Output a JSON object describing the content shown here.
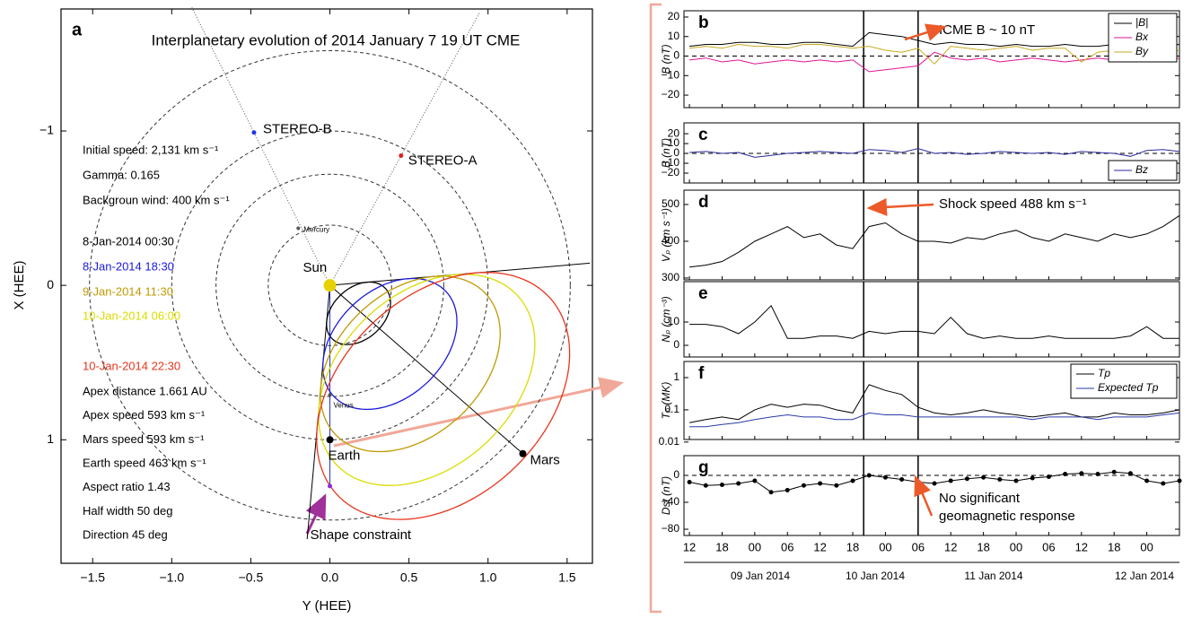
{
  "chart_data": [
    {
      "type": "orbit",
      "panel_letter": "a",
      "title": "Interplanetary evolution of 2014 January 7 19 UT CME",
      "xlabel": "Y (HEE)",
      "ylabel": "X (HEE)",
      "xlim": [
        -1.7,
        1.66
      ],
      "ylim": [
        -1.79,
        1.8
      ],
      "y_inverted": true,
      "xticks": [
        {
          "value": -1.5,
          "label": "−1.5"
        },
        {
          "value": -1,
          "label": "−1.0"
        },
        {
          "value": -0.5,
          "label": "−0.5"
        },
        {
          "value": 0,
          "label": "0.0"
        },
        0.5,
        {
          "value": 1,
          "label": "1.0"
        },
        1.5
      ],
      "yticks": [
        {
          "value": -1,
          "label": "−1"
        },
        0,
        1
      ],
      "orbits": [
        0.39,
        0.72,
        1.0,
        1.52
      ],
      "bodies": [
        {
          "name": "Sun",
          "pos": [
            0,
            0
          ],
          "color": "#e6d200"
        },
        {
          "name": "STEREO-B",
          "pos": [
            -0.48,
            -0.99
          ],
          "color": "#2233ee"
        },
        {
          "name": "STEREO-A",
          "pos": [
            0.45,
            -0.84
          ],
          "color": "#e02020"
        },
        {
          "name": "Mercury",
          "pos": [
            -0.2,
            -0.37
          ],
          "color": "#555555"
        },
        {
          "name": "Venus",
          "pos": [
            0,
            0.71
          ],
          "color": "#555555"
        },
        {
          "name": "Earth",
          "pos": [
            0,
            1.0
          ],
          "color": "#000000"
        },
        {
          "name": "Mars",
          "pos": [
            1.22,
            1.09
          ],
          "color": "#000000"
        },
        {
          "name": "Shape constraint",
          "pos": [
            0,
            1.3
          ],
          "color": "#8a2be2"
        }
      ],
      "parameters": [
        "Initial speed: 2,131 km s⁻¹",
        "Gamma: 0.165",
        "Backgroun wind: 400 km s⁻¹"
      ],
      "results": [
        "Apex distance 1.661 AU",
        "Apex speed 593 km s⁻¹",
        "Mars speed 593 km s⁻¹",
        "Earth speed 463 km s⁻¹",
        "Aspect ratio 1.43",
        "Half width 50 deg",
        "Direction 45 deg"
      ],
      "cme": {
        "direction": 45,
        "half_width": 50,
        "aspect_ratio": 1.43,
        "fronts": [
          {
            "label": "8-Jan-2014 00:30",
            "color": "#000000",
            "apex": 0.42
          },
          {
            "label": "8-Jan-2014 18:30",
            "color": "#1a1adc",
            "apex": 0.88
          },
          {
            "label": "9-Jan-2014 11:30",
            "color": "#c09a00",
            "apex": 1.18
          },
          {
            "label": "10-Jan-2014 06:00",
            "color": "#dcdc00",
            "apex": 1.42
          },
          {
            "label": "10-Jan-2014 22:30",
            "color": "#e8341c",
            "apex": 1.661
          }
        ]
      }
    },
    {
      "type": "line",
      "x": [
        12,
        15,
        18,
        21,
        24,
        27,
        30,
        33,
        36,
        39,
        42,
        45,
        48,
        51,
        54,
        57,
        60,
        63,
        66,
        69,
        72,
        75,
        78,
        81,
        84,
        87,
        90,
        93,
        96,
        99,
        102
      ],
      "xlim": [
        11,
        102
      ],
      "xticks": [
        12,
        18,
        {
          "value": 24,
          "label": "00"
        },
        {
          "value": 30,
          "label": "06"
        },
        {
          "value": 36,
          "label": "12"
        },
        {
          "value": 42,
          "label": "18"
        },
        {
          "value": 48,
          "label": "00"
        },
        {
          "value": 54,
          "label": "06"
        },
        {
          "value": 60,
          "label": "12"
        },
        {
          "value": 66,
          "label": "18"
        },
        {
          "value": 72,
          "label": "00"
        },
        {
          "value": 78,
          "label": "06"
        },
        {
          "value": 84,
          "label": "12"
        },
        {
          "value": 90,
          "label": "18"
        },
        {
          "value": 96,
          "label": "00"
        }
      ],
      "dates": [
        "09 Jan 2014",
        "10 Jan 2014",
        "11 Jan 2014",
        "12 Jan 2014"
      ],
      "event_lines": [
        44,
        54
      ],
      "panels": [
        {
          "letter": "b",
          "ylabel": "B (nT)",
          "ylim": [
            -26.4,
            23.2
          ],
          "yticks": [
            {
              "value": -20,
              "label": "−20"
            },
            {
              "value": -10,
              "label": "−10"
            },
            0,
            10,
            20
          ],
          "zero_line": true,
          "legend": "upper right",
          "annotation": [
            "ICME B ~ 10 nT"
          ],
          "series": [
            {
              "name": "|B|",
              "color": "#000000",
              "values": [
                5,
                6,
                6,
                7,
                7,
                6,
                6,
                7,
                7,
                6,
                5,
                12,
                11,
                10,
                8,
                6,
                7,
                6,
                6,
                5,
                6,
                5,
                5,
                6,
                5,
                5,
                6,
                5,
                6,
                5,
                6
              ]
            },
            {
              "name": "Bx",
              "color": "#e0149a",
              "values": [
                -2,
                -1,
                -3,
                -2,
                -4,
                -3,
                -2,
                -3,
                -2,
                -3,
                -2,
                -8,
                -7,
                -6,
                -5,
                2,
                -1,
                -2,
                -1,
                -3,
                -2,
                -1,
                -2,
                -3,
                -2,
                -1,
                -2,
                -1,
                -2,
                -3,
                -1
              ]
            },
            {
              "name": "By",
              "color": "#c8aa20",
              "values": [
                4,
                5,
                4,
                6,
                5,
                5,
                4,
                6,
                6,
                5,
                4,
                5,
                3,
                2,
                4,
                -4,
                5,
                4,
                3,
                4,
                5,
                3,
                4,
                4,
                -3,
                2,
                3,
                3,
                4,
                2,
                3
              ]
            }
          ]
        },
        {
          "letter": "c",
          "ylabel": "B (nT)",
          "ylim": [
            -30,
            31
          ],
          "yticks": [
            {
              "value": -20,
              "label": "−20"
            },
            {
              "value": -10,
              "label": "−10"
            },
            0,
            10,
            20
          ],
          "zero_line": true,
          "legend": "lower right",
          "series": [
            {
              "name": "Bz",
              "color": "#2a2a9a",
              "values": [
                1,
                2,
                0,
                1,
                -4,
                -2,
                0,
                1,
                2,
                1,
                0,
                4,
                3,
                1,
                5,
                0,
                1,
                -1,
                0,
                2,
                1,
                0,
                1,
                -1,
                2,
                1,
                0,
                -3,
                3,
                4,
                2
              ]
            }
          ]
        },
        {
          "letter": "d",
          "ylabel": "Vₚ (km s⁻¹)",
          "ylim": [
            295,
            539
          ],
          "yticks": [
            300,
            400,
            500
          ],
          "annotation": [
            "Shock speed 488 km s⁻¹"
          ],
          "series": [
            {
              "color": "#000000",
              "values": [
                330,
                335,
                345,
                370,
                400,
                420,
                440,
                410,
                420,
                390,
                380,
                440,
                450,
                420,
                400,
                400,
                395,
                410,
                405,
                420,
                430,
                410,
                400,
                420,
                410,
                400,
                420,
                410,
                420,
                440,
                470
              ]
            }
          ]
        },
        {
          "letter": "e",
          "ylabel": "Nₚ (cm⁻³)",
          "ylim": [
            -5,
            27.3
          ],
          "yticks": [
            0,
            10
          ],
          "series": [
            {
              "color": "#000000",
              "values": [
                9,
                9,
                8,
                5,
                10,
                17,
                3,
                3,
                4,
                4,
                3,
                6,
                5,
                6,
                6,
                5,
                12,
                5,
                3,
                4,
                3,
                3,
                4,
                3,
                3,
                3,
                3,
                4,
                8,
                3,
                3
              ]
            }
          ]
        },
        {
          "letter": "f",
          "ylabel": "Tₚ (MK)",
          "ylim": [
            0.012,
            3.16
          ],
          "log": true,
          "yticks": [
            0.01,
            0.1,
            1
          ],
          "legend": "upper right",
          "series": [
            {
              "name": "Tp",
              "color": "#000000",
              "values": [
                0.04,
                0.05,
                0.06,
                0.05,
                0.1,
                0.15,
                0.12,
                0.15,
                0.14,
                0.1,
                0.08,
                0.6,
                0.4,
                0.3,
                0.12,
                0.08,
                0.07,
                0.08,
                0.1,
                0.08,
                0.07,
                0.06,
                0.07,
                0.08,
                0.06,
                0.06,
                0.08,
                0.07,
                0.07,
                0.08,
                0.1
              ]
            },
            {
              "name": "Expected Tp",
              "color": "#2a3aa8",
              "values": [
                0.03,
                0.03,
                0.035,
                0.04,
                0.05,
                0.06,
                0.07,
                0.06,
                0.06,
                0.05,
                0.05,
                0.08,
                0.07,
                0.07,
                0.06,
                0.06,
                0.06,
                0.06,
                0.06,
                0.06,
                0.06,
                0.05,
                0.06,
                0.06,
                0.06,
                0.05,
                0.06,
                0.06,
                0.06,
                0.07,
                0.08
              ]
            }
          ]
        },
        {
          "letter": "g",
          "ylabel": "Dst (nT)",
          "ylim": [
            -89.3,
            29.3
          ],
          "yticks": [
            {
              "value": -80,
              "label": "−80"
            },
            {
              "value": -40,
              "label": "−40"
            },
            0
          ],
          "zero_line": true,
          "markers": true,
          "annotation": [
            "No significant",
            "geomagnetic response"
          ],
          "series": [
            {
              "color": "#000000",
              "values": [
                -10,
                -15,
                -14,
                -12,
                -8,
                -25,
                -22,
                -15,
                -12,
                -15,
                -8,
                0,
                -3,
                -6,
                -10,
                -12,
                -8,
                -5,
                -3,
                -6,
                -8,
                -4,
                -2,
                2,
                3,
                2,
                5,
                3,
                -8,
                -12,
                -8
              ]
            }
          ]
        }
      ]
    }
  ]
}
